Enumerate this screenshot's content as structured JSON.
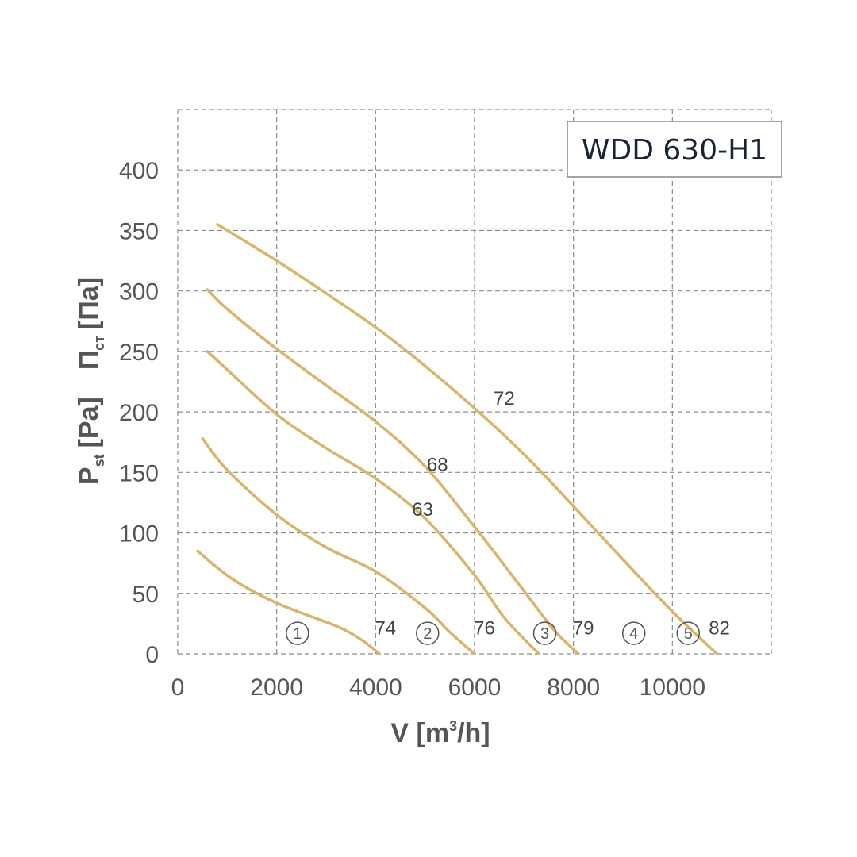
{
  "chart_data": {
    "type": "line",
    "title": "WDD 630-H1",
    "xlabel": "V [m",
    "xlabel_sup": "3",
    "xlabel_tail": "/h]",
    "ylabel_en": "P",
    "ylabel_en_sub": "st",
    "ylabel_en_unit": "[Pa]",
    "ylabel_ru": "П",
    "ylabel_ru_sub": "ст",
    "ylabel_ru_unit": "[Па]",
    "xlim": [
      0,
      12000
    ],
    "ylim": [
      0,
      450
    ],
    "x_ticks": [
      0,
      2000,
      4000,
      6000,
      8000,
      10000
    ],
    "x_tick_labels": [
      "0",
      "2000",
      "4000",
      "6000",
      "8000",
      "10000"
    ],
    "y_ticks": [
      0,
      50,
      100,
      150,
      200,
      250,
      300,
      350,
      400
    ],
    "y_tick_labels": [
      "0",
      "50",
      "100",
      "150",
      "200",
      "250",
      "300",
      "350",
      "400"
    ],
    "x_grid": [
      0,
      2000,
      4000,
      6000,
      8000,
      10000,
      12000
    ],
    "y_grid": [
      0,
      50,
      100,
      150,
      200,
      250,
      300,
      350,
      400,
      450
    ],
    "grid": true,
    "curve_color": "#d9b46a",
    "series": [
      {
        "marker": "1",
        "points": [
          [
            400,
            85
          ],
          [
            1100,
            62
          ],
          [
            2000,
            42
          ],
          [
            3200,
            23
          ],
          [
            3700,
            12
          ],
          [
            4080,
            0
          ]
        ]
      },
      {
        "marker": "2",
        "points": [
          [
            500,
            178
          ],
          [
            1000,
            152
          ],
          [
            2000,
            115
          ],
          [
            3000,
            88
          ],
          [
            4000,
            68
          ],
          [
            5000,
            38
          ],
          [
            5500,
            18
          ],
          [
            6000,
            0
          ]
        ]
      },
      {
        "marker": "3",
        "points": [
          [
            600,
            250
          ],
          [
            1000,
            235
          ],
          [
            2000,
            198
          ],
          [
            3000,
            170
          ],
          [
            4000,
            145
          ],
          [
            5000,
            112
          ],
          [
            6000,
            65
          ],
          [
            6600,
            30
          ],
          [
            7300,
            0
          ]
        ]
      },
      {
        "marker": "4",
        "points": [
          [
            600,
            301
          ],
          [
            1000,
            285
          ],
          [
            2000,
            252
          ],
          [
            3000,
            222
          ],
          [
            4000,
            192
          ],
          [
            5000,
            155
          ],
          [
            6000,
            105
          ],
          [
            7000,
            52
          ],
          [
            7600,
            20
          ],
          [
            8100,
            0
          ]
        ]
      },
      {
        "marker": "5",
        "points": [
          [
            800,
            355
          ],
          [
            2000,
            325
          ],
          [
            3000,
            298
          ],
          [
            4000,
            270
          ],
          [
            5000,
            238
          ],
          [
            6000,
            203
          ],
          [
            7000,
            165
          ],
          [
            8000,
            122
          ],
          [
            9000,
            78
          ],
          [
            10000,
            35
          ],
          [
            10900,
            0
          ]
        ]
      }
    ],
    "annotations": [
      {
        "text": "72",
        "x": 6600,
        "y": 212
      },
      {
        "text": "68",
        "x": 5250,
        "y": 157
      },
      {
        "text": "63",
        "x": 4950,
        "y": 120
      },
      {
        "text": "74",
        "x": 4200,
        "y": 22
      },
      {
        "text": "76",
        "x": 6200,
        "y": 22
      },
      {
        "text": "79",
        "x": 8200,
        "y": 22
      },
      {
        "text": "82",
        "x": 10950,
        "y": 22
      }
    ],
    "circled_markers": [
      {
        "text": "1",
        "x": 2420,
        "y": 17
      },
      {
        "text": "2",
        "x": 5050,
        "y": 17
      },
      {
        "text": "3",
        "x": 7420,
        "y": 17
      },
      {
        "text": "4",
        "x": 9220,
        "y": 17
      },
      {
        "text": "5",
        "x": 10320,
        "y": 17
      }
    ]
  }
}
